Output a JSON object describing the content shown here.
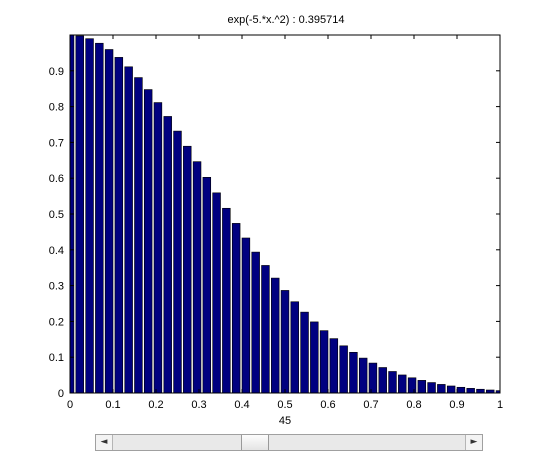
{
  "chart_data": {
    "type": "bar",
    "title": "exp(-5.*x.^2)  :   0.395714",
    "xlabel": "45",
    "ylabel": "",
    "x": [
      0.0,
      0.0227,
      0.0455,
      0.0682,
      0.0909,
      0.1136,
      0.1364,
      0.1591,
      0.1818,
      0.2045,
      0.2273,
      0.25,
      0.2727,
      0.2955,
      0.3182,
      0.3409,
      0.3636,
      0.3864,
      0.4091,
      0.4318,
      0.4545,
      0.4773,
      0.5,
      0.5227,
      0.5455,
      0.5682,
      0.5909,
      0.6136,
      0.6364,
      0.6591,
      0.6818,
      0.7045,
      0.7273,
      0.75,
      0.7727,
      0.7955,
      0.8182,
      0.8409,
      0.8636,
      0.8864,
      0.9091,
      0.9318,
      0.9545,
      0.9773,
      1.0
    ],
    "values": [
      1.0,
      0.9974,
      0.9897,
      0.977,
      0.9595,
      0.9375,
      0.9112,
      0.8811,
      0.8476,
      0.8113,
      0.7725,
      0.7316,
      0.6893,
      0.6462,
      0.6025,
      0.5591,
      0.516,
      0.4738,
      0.433,
      0.3936,
      0.3563,
      0.321,
      0.2865,
      0.2549,
      0.2259,
      0.1986,
      0.1742,
      0.1519,
      0.1318,
      0.1137,
      0.0975,
      0.0836,
      0.0712,
      0.0601,
      0.0504,
      0.0425,
      0.0353,
      0.0292,
      0.024,
      0.0196,
      0.016,
      0.013,
      0.0105,
      0.0084,
      0.0067
    ],
    "xlim": [
      0,
      1
    ],
    "ylim": [
      0,
      1
    ],
    "x_ticks": [
      "0",
      "0.1",
      "0.2",
      "0.3",
      "0.4",
      "0.5",
      "0.6",
      "0.7",
      "0.8",
      "0.9",
      "1"
    ],
    "y_ticks": [
      "0",
      "0.1",
      "0.2",
      "0.3",
      "0.4",
      "0.5",
      "0.6",
      "0.7",
      "0.8",
      "0.9"
    ],
    "bar_color": "#000080",
    "grid": false
  },
  "slider": {
    "left_arrow": "◄",
    "right_arrow": "►",
    "value": 0.395714
  }
}
